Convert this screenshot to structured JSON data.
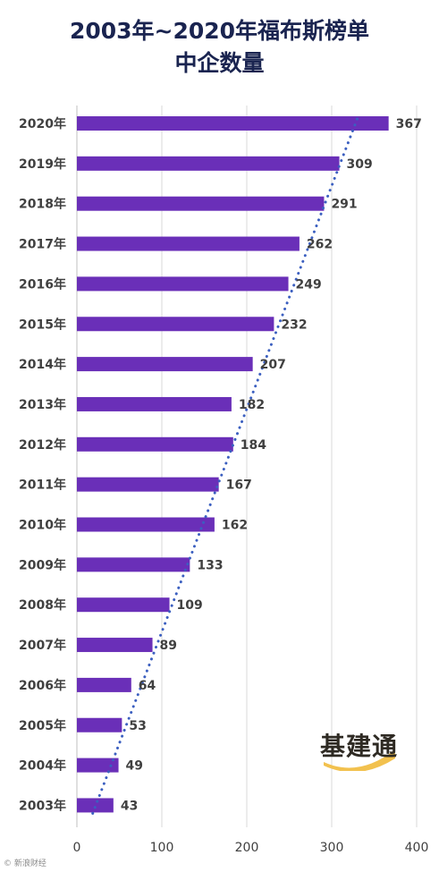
{
  "title_line1": "2003年~2020年福布斯榜单",
  "title_line2": "中企数量",
  "watermark_text": "基建通",
  "credit_text": "© 新浪财经",
  "chart_data": {
    "type": "bar",
    "orientation": "horizontal",
    "title": "2003年~2020年福布斯榜单中企数量",
    "categories": [
      "2020年",
      "2019年",
      "2018年",
      "2017年",
      "2016年",
      "2015年",
      "2014年",
      "2013年",
      "2012年",
      "2011年",
      "2010年",
      "2009年",
      "2008年",
      "2007年",
      "2006年",
      "2005年",
      "2004年",
      "2003年"
    ],
    "values": [
      367,
      309,
      291,
      262,
      249,
      232,
      207,
      182,
      184,
      167,
      162,
      133,
      109,
      89,
      64,
      53,
      49,
      43
    ],
    "xlim": [
      0,
      400
    ],
    "xticks": [
      0,
      100,
      200,
      300,
      400
    ],
    "grid": true,
    "bar_color": "#6a2fb8",
    "trendline": {
      "style": "dotted",
      "color": "#3b5fc0",
      "type": "linear"
    },
    "data_labels": true
  }
}
